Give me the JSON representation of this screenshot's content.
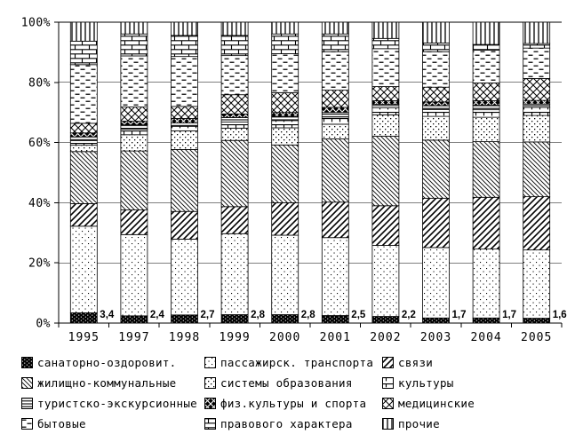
{
  "chart_data": {
    "type": "bar",
    "stacked": true,
    "title": "",
    "xlabel": "",
    "ylabel": "",
    "ylim": [
      0,
      100
    ],
    "grid": true,
    "legend_position": "bottom",
    "y_ticks": [
      "0%",
      "20%",
      "40%",
      "60%",
      "80%",
      "100%"
    ],
    "categories": [
      "1995",
      "1997",
      "1998",
      "1999",
      "2000",
      "2001",
      "2002",
      "2003",
      "2004",
      "2005"
    ],
    "series": [
      {
        "name": "санаторно-оздоровит.",
        "pattern": "speckled-black",
        "values": [
          3.4,
          2.4,
          2.7,
          2.8,
          2.8,
          2.5,
          2.2,
          1.7,
          1.7,
          1.6
        ]
      },
      {
        "name": "пассажирск. транспорта",
        "pattern": "dots-sparse",
        "values": [
          28.8,
          27.0,
          25.2,
          26.9,
          26.4,
          25.9,
          23.6,
          23.4,
          22.9,
          22.7
        ]
      },
      {
        "name": "связи",
        "pattern": "diag-up",
        "values": [
          7.5,
          8.2,
          9.2,
          9.0,
          10.8,
          11.8,
          13.2,
          16.4,
          17.2,
          17.7
        ]
      },
      {
        "name": "жилищно-коммунальные",
        "pattern": "diag-down",
        "values": [
          17.3,
          19.6,
          20.6,
          22.0,
          19.2,
          21.0,
          23.1,
          19.3,
          18.5,
          18.2
        ]
      },
      {
        "name": "системы образования",
        "pattern": "dots-dense",
        "values": [
          2.1,
          5.4,
          6.2,
          4.1,
          5.7,
          4.9,
          7.1,
          7.9,
          8.1,
          8.8
        ]
      },
      {
        "name": "культуры",
        "pattern": "tee-grid",
        "values": [
          1.5,
          1.9,
          1.5,
          2.0,
          2.4,
          2.4,
          2.3,
          2.3,
          2.5,
          2.7
        ]
      },
      {
        "name": "туристско-экскурсионные",
        "pattern": "hlines",
        "values": [
          1.3,
          1.4,
          1.1,
          1.5,
          1.4,
          1.5,
          1.2,
          1.3,
          1.5,
          1.1
        ]
      },
      {
        "name": "физ.культуры и спорта",
        "pattern": "black-x",
        "values": [
          1.3,
          1.2,
          1.5,
          1.2,
          1.3,
          1.7,
          1.2,
          1.2,
          1.5,
          1.2
        ]
      },
      {
        "name": "медицинские",
        "pattern": "crosshatch",
        "values": [
          3.2,
          4.7,
          4.0,
          6.4,
          6.6,
          5.7,
          4.7,
          4.9,
          5.9,
          7.3
        ]
      },
      {
        "name": "бытовые",
        "pattern": "dashes",
        "values": [
          19.5,
          17.0,
          16.6,
          13.0,
          12.9,
          12.8,
          12.6,
          11.8,
          10.9,
          10.1
        ]
      },
      {
        "name": "правового характера",
        "pattern": "bricks",
        "values": [
          7.8,
          7.3,
          7.0,
          6.7,
          6.6,
          5.9,
          3.4,
          2.9,
          1.9,
          1.5
        ]
      },
      {
        "name": "прочие",
        "pattern": "vlines",
        "values": [
          6.3,
          3.9,
          4.4,
          4.4,
          3.9,
          3.9,
          5.4,
          6.9,
          7.4,
          7.1
        ]
      }
    ],
    "data_labels": {
      "series": "санаторно-оздоровит.",
      "values": [
        "3,4",
        "2,4",
        "2,7",
        "2,8",
        "2,8",
        "2,5",
        "2,2",
        "1,7",
        "1,7",
        "1,6"
      ]
    },
    "colors": {
      "foreground": "#000000",
      "background": "#ffffff"
    }
  }
}
